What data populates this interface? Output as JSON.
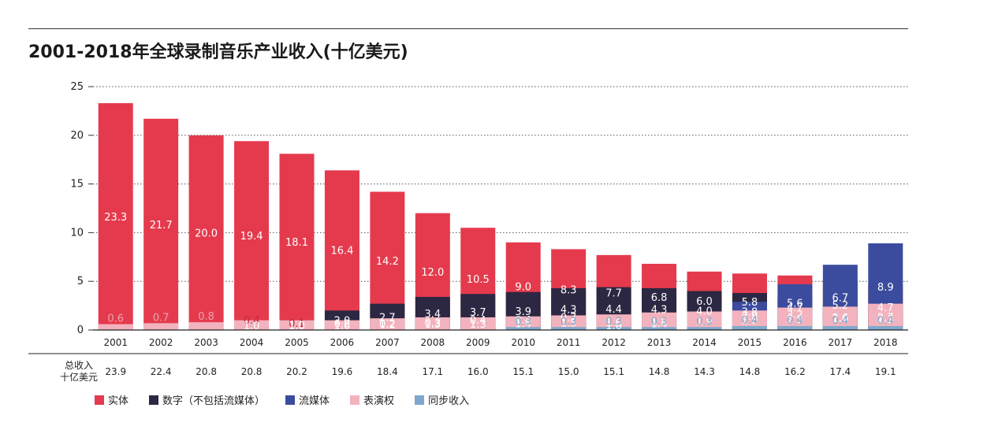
{
  "page": {
    "title": "2001-2018年全球录制音乐产业收入(十亿美元)"
  },
  "chart_data": {
    "type": "bar",
    "stacked": true,
    "categories": [
      "2001",
      "2002",
      "2003",
      "2004",
      "2005",
      "2006",
      "2007",
      "2008",
      "2009",
      "2010",
      "2011",
      "2012",
      "2013",
      "2014",
      "2015",
      "2016",
      "2017",
      "2018"
    ],
    "series": [
      {
        "name": "实体",
        "color": "#e53a4d",
        "label_color": "#ffffff",
        "values": [
          23.3,
          21.7,
          20.0,
          19.4,
          18.1,
          16.4,
          14.2,
          12.0,
          10.5,
          9.0,
          8.3,
          7.7,
          6.8,
          6.0,
          5.8,
          5.6,
          5.2,
          4.7
        ]
      },
      {
        "name": "数字（不包括流媒体）",
        "color": "#2c2742",
        "label_color": "#ffffff",
        "values": [
          null,
          null,
          null,
          0.4,
          1.0,
          2.0,
          2.7,
          3.4,
          3.7,
          3.9,
          4.3,
          4.4,
          4.3,
          4.0,
          3.8,
          3.2,
          2.6,
          2.3
        ]
      },
      {
        "name": "流媒体",
        "color": "#3b4c9e",
        "label_color": "#ffffff",
        "values": [
          null,
          null,
          null,
          null,
          0.1,
          0.2,
          0.2,
          0.3,
          0.4,
          0.4,
          0.7,
          1.0,
          1.4,
          1.9,
          2.9,
          4.7,
          6.7,
          8.9
        ]
      },
      {
        "name": "表演权",
        "color": "#f2b3be",
        "label_color": "#ffffff",
        "values": [
          0.6,
          0.7,
          0.8,
          1.0,
          1.0,
          1.0,
          1.2,
          1.3,
          1.3,
          1.4,
          1.5,
          1.6,
          1.8,
          1.9,
          2.0,
          2.3,
          2.4,
          2.7
        ]
      },
      {
        "name": "同步收入",
        "color": "#7fa8cc",
        "label_color": "#7fa8cc",
        "values": [
          null,
          null,
          null,
          null,
          null,
          null,
          null,
          null,
          null,
          0.3,
          0.3,
          0.3,
          0.3,
          0.3,
          0.4,
          0.4,
          0.4,
          0.4
        ]
      }
    ],
    "totals_label": [
      "总收入",
      "十亿美元"
    ],
    "totals": [
      "23.9",
      "22.4",
      "20.8",
      "20.8",
      "20.2",
      "19.6",
      "18.4",
      "17.1",
      "16.0",
      "15.1",
      "15.0",
      "15.1",
      "14.8",
      "14.3",
      "14.8",
      "16.2",
      "17.4",
      "19.1"
    ],
    "ylim": [
      0,
      25
    ],
    "yticks": [
      0,
      5,
      10,
      15,
      20,
      25
    ],
    "grid": "dotted-horizontal",
    "legend_position": "bottom-left"
  }
}
